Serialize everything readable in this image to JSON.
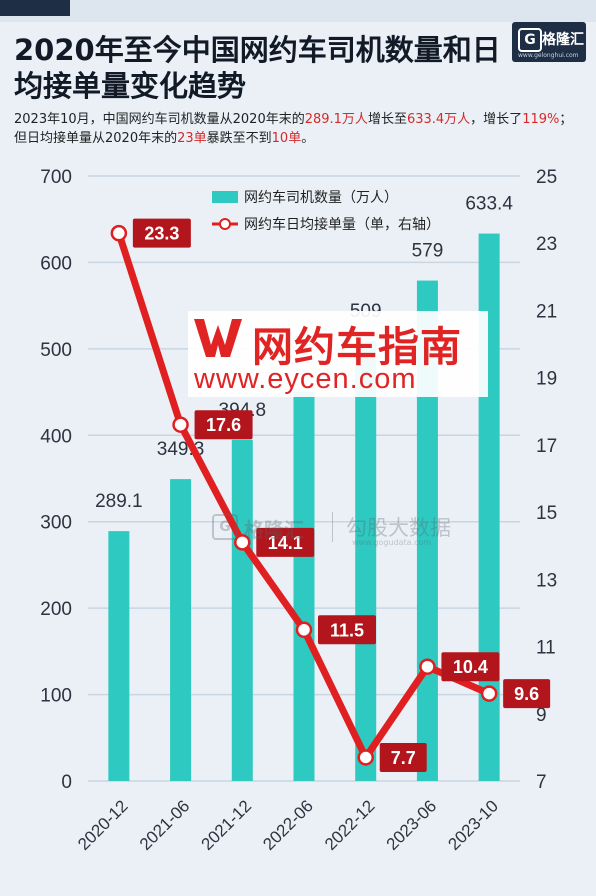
{
  "brand": {
    "logo_text": "格隆汇",
    "logo_mark": "G",
    "logo_site": "www.gelonghui.com"
  },
  "header": {
    "title": "2020年至今中国网约车司机数量和日均接单量变化趋势",
    "subtitle_parts": [
      {
        "text": "2023年10月，中国网约车司机数量从2020年末的",
        "hl": false
      },
      {
        "text": "289.1万人",
        "hl": true
      },
      {
        "text": "增长至",
        "hl": false
      },
      {
        "text": "633.4万人",
        "hl": true
      },
      {
        "text": "，增长了",
        "hl": false
      },
      {
        "text": "119%",
        "hl": true
      },
      {
        "text": "；但日均接单量从2020年末的",
        "hl": false
      },
      {
        "text": "23单",
        "hl": true
      },
      {
        "text": "暴跌至不到",
        "hl": false
      },
      {
        "text": "10单",
        "hl": true
      },
      {
        "text": "。",
        "hl": false
      }
    ]
  },
  "watermarks": {
    "main_cn": "网约车指南",
    "main_url": "www.eycen.com",
    "gogu_mark": "G",
    "gogu_a": "格隆汇",
    "gogu_b": "勾股大数据",
    "gogu_site": "www.gogudata.com"
  },
  "colors": {
    "bar": "#2ec9c0",
    "line": "#e02020",
    "label_box": "#b3151c",
    "grid": "#c9d6e2"
  },
  "chart_data": {
    "type": "bar",
    "categories": [
      "2020-12",
      "2021-06",
      "2021-12",
      "2022-06",
      "2022-12",
      "2023-06",
      "2023-10"
    ],
    "series": [
      {
        "name": "网约车司机数量（万人）",
        "type": "bar",
        "axis": "left",
        "values": [
          289.1,
          349.3,
          394.8,
          450,
          509,
          579,
          633.4
        ],
        "labels": [
          "289.1",
          "349.3",
          "394.8",
          "",
          "509",
          "579",
          "633.4"
        ]
      },
      {
        "name": "网约车日均接单量（单，右轴）",
        "type": "line",
        "axis": "right",
        "values": [
          23.3,
          17.6,
          14.1,
          11.5,
          7.7,
          10.4,
          9.6
        ],
        "labels": [
          "23.3",
          "17.6",
          "14.1",
          "11.5",
          "7.7",
          "10.4",
          "9.6"
        ]
      }
    ],
    "y_left": {
      "range": [
        0,
        700
      ],
      "ticks": [
        0,
        100,
        200,
        300,
        400,
        500,
        600,
        700
      ]
    },
    "y_right": {
      "range": [
        7,
        25
      ],
      "ticks": [
        7,
        9,
        11,
        13,
        15,
        17,
        19,
        21,
        23,
        25
      ]
    },
    "grid": true,
    "legend_position": "top-right"
  }
}
